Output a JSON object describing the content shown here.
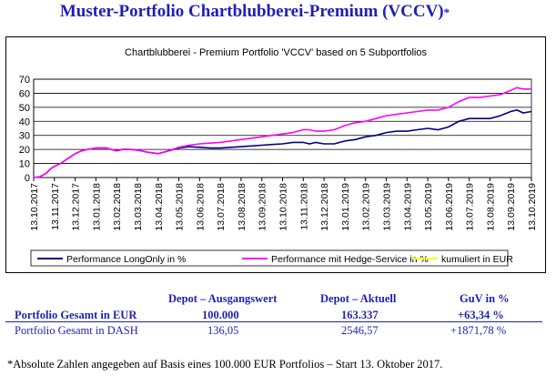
{
  "page": {
    "title": "Muster-Portfolio Chartblubberei-Premium (VCCV)",
    "title_mark": "*",
    "footnote": "*Absolute Zahlen angegeben auf Basis eines 100.000 EUR Portfolios – Start 13. Oktober 2017."
  },
  "table": {
    "headers": [
      "Depot – Ausgangswert",
      "Depot – Aktuell",
      "GuV in %"
    ],
    "rows": [
      {
        "label": "Portfolio Gesamt in EUR",
        "start": "100.000",
        "current": "163.337",
        "guv": "+63,34 %"
      },
      {
        "label": "Portfolio Gesamt in DASH",
        "start": "136,05",
        "current": "2546,57",
        "guv": "+1871,78 %"
      }
    ]
  },
  "chart_data": {
    "type": "line",
    "title": "Chartblubberei - Premium Portfolio 'VCCV' based on 5 Subportfolios",
    "ylim": [
      0,
      70
    ],
    "yticks": [
      0,
      10,
      20,
      30,
      40,
      50,
      60,
      70
    ],
    "grid": "horizontal",
    "legend_position": "bottom",
    "xticks": [
      "13.10.2017",
      "13.11.2017",
      "13.12.2017",
      "13.01.2018",
      "13.02.2018",
      "13.03.2018",
      "13.04.2018",
      "13.05.2018",
      "13.06.2018",
      "13.07.2018",
      "13.08.2018",
      "13.09.2018",
      "13.10.2018",
      "13.11.2018",
      "13.12.2018",
      "13.01.2019",
      "13.02.2019",
      "13.03.2019",
      "13.04.2019",
      "13.05.2019",
      "13.06.2019",
      "13.07.2019",
      "13.08.2019",
      "13.09.2019",
      "13.10.2019"
    ],
    "series": [
      {
        "name": "Performance LongOnly in %",
        "color": "#000080",
        "points": [
          [
            0,
            0
          ],
          [
            0.3,
            0.5
          ],
          [
            0.6,
            3
          ],
          [
            0.8,
            6
          ],
          [
            1,
            8
          ],
          [
            1.3,
            10
          ],
          [
            1.6,
            13
          ],
          [
            1.8,
            15
          ],
          [
            2,
            17
          ],
          [
            2.3,
            19
          ],
          [
            2.6,
            20
          ],
          [
            3,
            21
          ],
          [
            3.5,
            21
          ],
          [
            4,
            19
          ],
          [
            4.3,
            20
          ],
          [
            4.6,
            20
          ],
          [
            5,
            19.5
          ],
          [
            5.5,
            18
          ],
          [
            6,
            17
          ],
          [
            6.5,
            19
          ],
          [
            7,
            21
          ],
          [
            7.5,
            22
          ],
          [
            8,
            21.5
          ],
          [
            8.5,
            21
          ],
          [
            9,
            21
          ],
          [
            9.5,
            21.5
          ],
          [
            10,
            22
          ],
          [
            10.5,
            22.5
          ],
          [
            11,
            23
          ],
          [
            11.5,
            23.5
          ],
          [
            12,
            24
          ],
          [
            12.5,
            25
          ],
          [
            13,
            25
          ],
          [
            13.3,
            24
          ],
          [
            13.6,
            25
          ],
          [
            14,
            24
          ],
          [
            14.5,
            24
          ],
          [
            15,
            26
          ],
          [
            15.5,
            27
          ],
          [
            16,
            29
          ],
          [
            16.5,
            30
          ],
          [
            17,
            32
          ],
          [
            17.5,
            33
          ],
          [
            18,
            33
          ],
          [
            18.5,
            34
          ],
          [
            19,
            35
          ],
          [
            19.5,
            34
          ],
          [
            20,
            36
          ],
          [
            20.5,
            40
          ],
          [
            21,
            42
          ],
          [
            21.5,
            42
          ],
          [
            22,
            42
          ],
          [
            22.5,
            44
          ],
          [
            23,
            47
          ],
          [
            23.3,
            48
          ],
          [
            23.6,
            46
          ],
          [
            24,
            47
          ]
        ]
      },
      {
        "name": "Performance mit Hedge-Service in %",
        "color": "#ff00ff",
        "points": [
          [
            0,
            0
          ],
          [
            0.3,
            0.5
          ],
          [
            0.6,
            3
          ],
          [
            0.8,
            6
          ],
          [
            1,
            8
          ],
          [
            1.3,
            10
          ],
          [
            1.6,
            13
          ],
          [
            1.8,
            15
          ],
          [
            2,
            17
          ],
          [
            2.3,
            19
          ],
          [
            2.6,
            20
          ],
          [
            3,
            21
          ],
          [
            3.5,
            21
          ],
          [
            4,
            19
          ],
          [
            4.3,
            20
          ],
          [
            4.6,
            20
          ],
          [
            5,
            19.5
          ],
          [
            5.5,
            18
          ],
          [
            6,
            17
          ],
          [
            6.5,
            19
          ],
          [
            7,
            21.5
          ],
          [
            7.5,
            23
          ],
          [
            8,
            24
          ],
          [
            8.5,
            24.5
          ],
          [
            9,
            25
          ],
          [
            9.5,
            26
          ],
          [
            10,
            27
          ],
          [
            10.5,
            28
          ],
          [
            11,
            29
          ],
          [
            11.5,
            30
          ],
          [
            12,
            31
          ],
          [
            12.5,
            32
          ],
          [
            13,
            34
          ],
          [
            13.3,
            34
          ],
          [
            13.6,
            33
          ],
          [
            14,
            33
          ],
          [
            14.5,
            34
          ],
          [
            15,
            37
          ],
          [
            15.5,
            39
          ],
          [
            16,
            40
          ],
          [
            16.5,
            42
          ],
          [
            17,
            44
          ],
          [
            17.5,
            45
          ],
          [
            18,
            46
          ],
          [
            18.5,
            47
          ],
          [
            19,
            48
          ],
          [
            19.5,
            48
          ],
          [
            20,
            50
          ],
          [
            20.5,
            54
          ],
          [
            21,
            57
          ],
          [
            21.5,
            57
          ],
          [
            22,
            58
          ],
          [
            22.5,
            59
          ],
          [
            23,
            62
          ],
          [
            23.3,
            64
          ],
          [
            23.6,
            63
          ],
          [
            24,
            63
          ]
        ]
      },
      {
        "name": "kumuliert in EUR",
        "color": "#ffff00",
        "points": []
      }
    ]
  }
}
